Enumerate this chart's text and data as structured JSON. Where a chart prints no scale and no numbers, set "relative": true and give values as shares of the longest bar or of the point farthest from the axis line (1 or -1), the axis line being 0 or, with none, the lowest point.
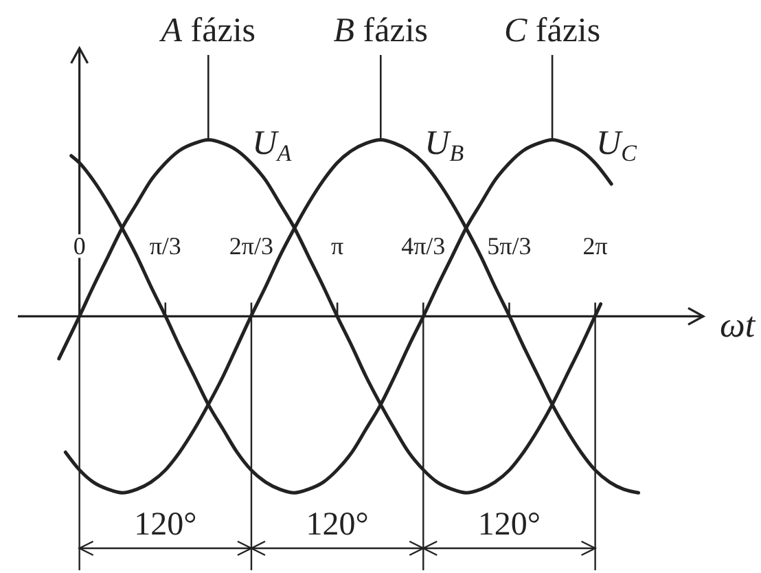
{
  "chart_data": {
    "type": "line",
    "relative": true,
    "xlabel": "ωt",
    "xlim": [
      -0.75,
      7.6
    ],
    "xticks": [
      0,
      {
        "value": 1.0472,
        "label": "π/3"
      },
      {
        "value": 2.0944,
        "label": "2π/3"
      },
      {
        "value": 3.1416,
        "label": "π"
      },
      {
        "value": 4.1888,
        "label": "4π/3"
      },
      {
        "value": 5.236,
        "label": "5π/3"
      },
      {
        "value": 6.2832,
        "label": "2π"
      }
    ],
    "annotations": [
      {
        "text": "A fázis",
        "x": 1.57,
        "y": 1
      },
      {
        "text": "B fázis",
        "x": 3.67,
        "y": 1
      },
      {
        "text": "C fázis",
        "x": 5.76,
        "y": 1
      },
      "120°",
      "120°",
      "120°"
    ],
    "ref_lines": [
      {
        "axis": "x",
        "value": 0
      },
      {
        "axis": "x",
        "value": 2.0944
      },
      {
        "axis": "x",
        "value": 4.1888
      },
      {
        "axis": "x",
        "value": 6.2832
      }
    ],
    "series": [
      {
        "name": "U$_{A}$",
        "color": "#222222",
        "x": [
          -0.25,
          0,
          0.17,
          0.35,
          0.52,
          0.7,
          0.87,
          1.05,
          1.22,
          1.4,
          1.57,
          1.75,
          1.92,
          2.09,
          2.27,
          2.44,
          2.62,
          2.79,
          2.97,
          3.14,
          3.32,
          3.49,
          3.67,
          3.84,
          4.01,
          4.19,
          4.36,
          4.54,
          4.71,
          4.89,
          5.06,
          5.24,
          5.41,
          5.59,
          5.76,
          5.93,
          6.11,
          6.28,
          6.35
        ],
        "values": [
          -0.24,
          0,
          0.17,
          0.34,
          0.5,
          0.64,
          0.77,
          0.87,
          0.94,
          0.98,
          1,
          0.98,
          0.94,
          0.87,
          0.77,
          0.64,
          0.5,
          0.34,
          0.17,
          0,
          -0.17,
          -0.34,
          -0.5,
          -0.64,
          -0.77,
          -0.87,
          -0.94,
          -0.98,
          -1,
          -0.98,
          -0.94,
          -0.87,
          -0.77,
          -0.64,
          -0.5,
          -0.34,
          -0.17,
          0,
          0.07
        ]
      },
      {
        "name": "U$_{B}$",
        "color": "#222222",
        "x": [
          -0.17,
          0,
          0.17,
          0.35,
          0.52,
          0.7,
          0.87,
          1.05,
          1.22,
          1.4,
          1.57,
          1.75,
          1.92,
          2.09,
          2.27,
          2.44,
          2.62,
          2.79,
          2.97,
          3.14,
          3.32,
          3.49,
          3.67,
          3.84,
          4.01,
          4.19,
          4.36,
          4.54,
          4.71,
          4.89,
          5.06,
          5.24,
          5.41,
          5.59,
          5.76,
          5.93,
          6.11,
          6.28,
          6.46,
          6.63,
          6.81
        ],
        "values": [
          -0.77,
          -0.87,
          -0.94,
          -0.98,
          -1,
          -0.98,
          -0.94,
          -0.87,
          -0.77,
          -0.64,
          -0.5,
          -0.34,
          -0.17,
          0,
          0.17,
          0.34,
          0.5,
          0.64,
          0.77,
          0.87,
          0.94,
          0.98,
          1,
          0.98,
          0.94,
          0.87,
          0.77,
          0.64,
          0.5,
          0.34,
          0.17,
          0,
          -0.17,
          -0.34,
          -0.5,
          -0.64,
          -0.77,
          -0.87,
          -0.94,
          -0.98,
          -1
        ]
      },
      {
        "name": "U$_{C}$",
        "color": "#222222",
        "x": [
          -0.1,
          0,
          0.17,
          0.35,
          0.52,
          0.7,
          0.87,
          1.05,
          1.22,
          1.4,
          1.57,
          1.75,
          1.92,
          2.09,
          2.27,
          2.44,
          2.62,
          2.79,
          2.97,
          3.14,
          3.32,
          3.49,
          3.67,
          3.84,
          4.01,
          4.19,
          4.36,
          4.54,
          4.71,
          4.89,
          5.06,
          5.24,
          5.41,
          5.59,
          5.76,
          5.93,
          6.11,
          6.28,
          6.48
        ],
        "values": [
          0.91,
          0.87,
          0.77,
          0.64,
          0.5,
          0.34,
          0.17,
          0,
          -0.17,
          -0.34,
          -0.5,
          -0.64,
          -0.77,
          -0.87,
          -0.94,
          -0.98,
          -1,
          -0.98,
          -0.94,
          -0.87,
          -0.77,
          -0.64,
          -0.5,
          -0.34,
          -0.17,
          0,
          0.17,
          0.34,
          0.5,
          0.64,
          0.77,
          0.87,
          0.94,
          0.98,
          1,
          0.98,
          0.94,
          0.87,
          0.75
        ]
      }
    ]
  }
}
